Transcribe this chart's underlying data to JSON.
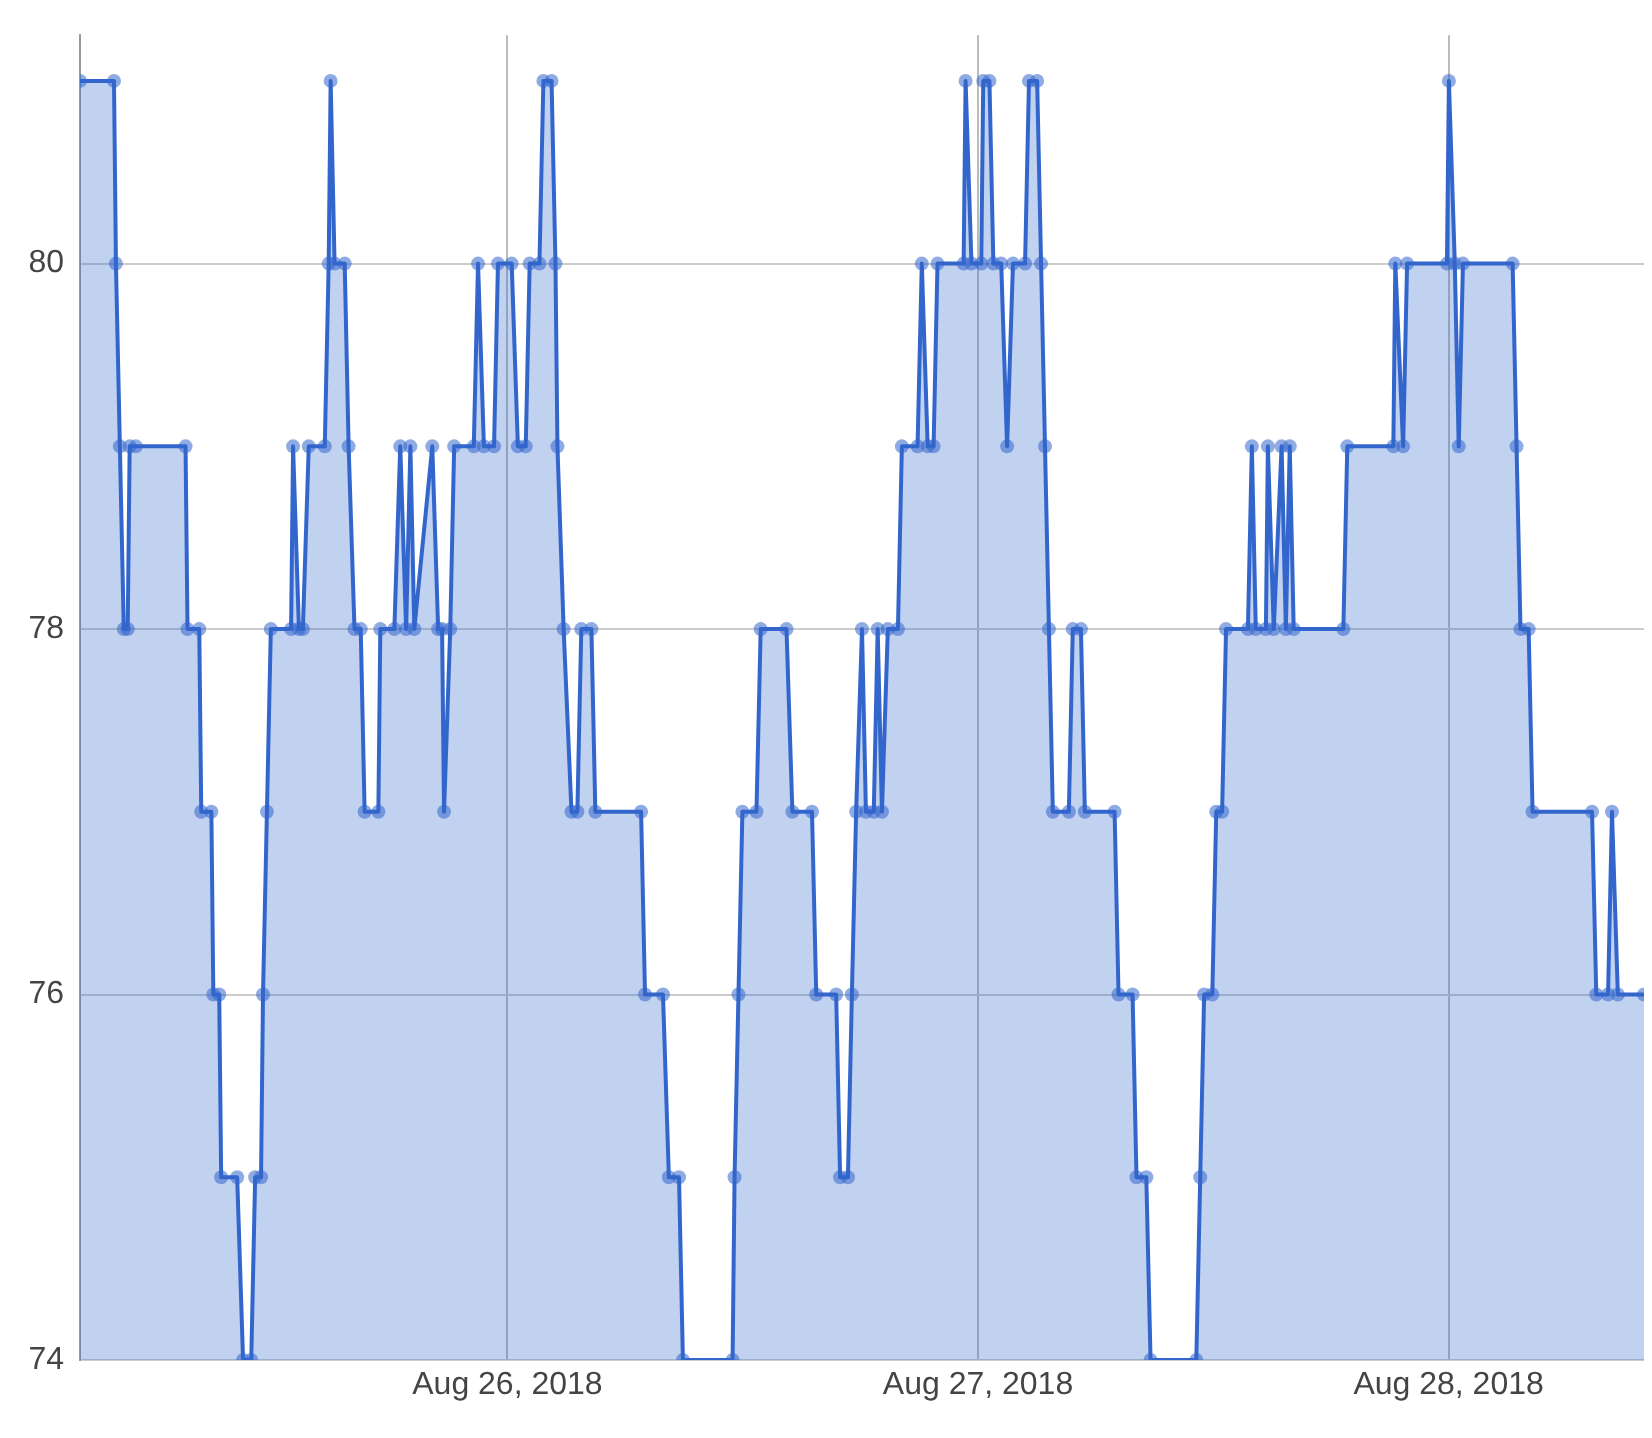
{
  "chart_data": {
    "type": "area",
    "x": [
      "2018-08-25T02:12",
      "2018-08-25T03:56",
      "2018-08-25T04:02",
      "2018-08-25T04:14",
      "2018-08-25T04:26",
      "2018-08-25T04:38",
      "2018-08-25T04:44",
      "2018-08-25T05:03",
      "2018-08-25T07:35",
      "2018-08-25T07:41",
      "2018-08-25T08:17",
      "2018-08-25T08:23",
      "2018-08-25T08:54",
      "2018-08-25T09:00",
      "2018-08-25T09:18",
      "2018-08-25T09:24",
      "2018-08-25T10:13",
      "2018-08-25T10:31",
      "2018-08-25T10:56",
      "2018-08-25T11:08",
      "2018-08-25T11:26",
      "2018-08-25T11:32",
      "2018-08-25T11:44",
      "2018-08-25T11:56",
      "2018-08-25T12:58",
      "2018-08-25T13:04",
      "2018-08-25T13:22",
      "2018-08-25T13:34",
      "2018-08-25T13:52",
      "2018-08-25T14:41",
      "2018-08-25T14:53",
      "2018-08-25T14:59",
      "2018-08-25T15:11",
      "2018-08-25T15:42",
      "2018-08-25T15:54",
      "2018-08-25T16:12",
      "2018-08-25T16:31",
      "2018-08-25T16:43",
      "2018-08-25T17:25",
      "2018-08-25T17:31",
      "2018-08-25T18:14",
      "2018-08-25T18:32",
      "2018-08-25T18:50",
      "2018-08-25T19:03",
      "2018-08-25T19:15",
      "2018-08-25T20:10",
      "2018-08-25T20:28",
      "2018-08-25T20:40",
      "2018-08-25T20:46",
      "2018-08-25T21:05",
      "2018-08-25T21:17",
      "2018-08-25T22:17",
      "2018-08-25T22:30",
      "2018-08-25T22:48",
      "2018-08-25T23:19",
      "2018-08-25T23:31",
      "2018-08-26T00:13",
      "2018-08-26T00:32",
      "2018-08-26T00:56",
      "2018-08-26T01:08",
      "2018-08-26T01:38",
      "2018-08-26T01:50",
      "2018-08-26T02:15",
      "2018-08-26T02:27",
      "2018-08-26T02:33",
      "2018-08-26T02:52",
      "2018-08-26T03:16",
      "2018-08-26T03:34",
      "2018-08-26T03:46",
      "2018-08-26T04:17",
      "2018-08-26T04:29",
      "2018-08-26T06:49",
      "2018-08-26T07:01",
      "2018-08-26T07:56",
      "2018-08-26T08:14",
      "2018-08-26T08:45",
      "2018-08-26T08:57",
      "2018-08-26T11:29",
      "2018-08-26T11:35",
      "2018-08-26T11:47",
      "2018-08-26T11:59",
      "2018-08-26T12:42",
      "2018-08-26T12:55",
      "2018-08-26T14:14",
      "2018-08-26T14:32",
      "2018-08-26T15:32",
      "2018-08-26T15:45",
      "2018-08-26T16:46",
      "2018-08-26T16:58",
      "2018-08-26T17:22",
      "2018-08-26T17:34",
      "2018-08-26T17:47",
      "2018-08-26T18:05",
      "2018-08-26T18:17",
      "2018-08-26T18:41",
      "2018-08-26T18:53",
      "2018-08-26T19:06",
      "2018-08-26T19:24",
      "2018-08-26T19:55",
      "2018-08-26T20:07",
      "2018-08-26T20:55",
      "2018-08-26T21:08",
      "2018-08-26T21:26",
      "2018-08-26T21:44",
      "2018-08-26T21:56",
      "2018-08-26T23:16",
      "2018-08-26T23:22",
      "2018-08-26T23:40",
      "2018-08-27T00:10",
      "2018-08-27T00:16",
      "2018-08-27T00:35",
      "2018-08-27T00:47",
      "2018-08-27T01:11",
      "2018-08-27T01:29",
      "2018-08-27T01:47",
      "2018-08-27T02:24",
      "2018-08-27T02:36",
      "2018-08-27T03:01",
      "2018-08-27T03:13",
      "2018-08-27T03:25",
      "2018-08-27T03:37",
      "2018-08-27T03:49",
      "2018-08-27T04:38",
      "2018-08-27T04:50",
      "2018-08-27T05:15",
      "2018-08-27T05:27",
      "2018-08-27T06:58",
      "2018-08-27T07:10",
      "2018-08-27T07:53",
      "2018-08-27T08:05",
      "2018-08-27T08:35",
      "2018-08-27T08:48",
      "2018-08-27T11:08",
      "2018-08-27T11:20",
      "2018-08-27T11:32",
      "2018-08-27T11:57",
      "2018-08-27T12:09",
      "2018-08-27T12:27",
      "2018-08-27T12:39",
      "2018-08-27T13:46",
      "2018-08-27T13:58",
      "2018-08-27T14:10",
      "2018-08-27T14:41",
      "2018-08-27T14:47",
      "2018-08-27T15:05",
      "2018-08-27T15:29",
      "2018-08-27T15:42",
      "2018-08-27T15:54",
      "2018-08-27T16:06",
      "2018-08-27T18:38",
      "2018-08-27T18:50",
      "2018-08-27T21:11",
      "2018-08-27T21:17",
      "2018-08-27T21:41",
      "2018-08-27T21:53",
      "2018-08-27T23:55",
      "2018-08-28T00:01",
      "2018-08-28T00:19",
      "2018-08-28T00:31",
      "2018-08-28T00:44",
      "2018-08-28T03:16",
      "2018-08-28T03:28",
      "2018-08-28T03:40",
      "2018-08-28T04:05",
      "2018-08-28T04:17",
      "2018-08-28T07:19",
      "2018-08-28T07:32",
      "2018-08-28T08:08",
      "2018-08-28T08:20",
      "2018-08-28T08:38",
      "2018-08-28T09:58"
    ],
    "series": [
      {
        "color": "#3366cc",
        "values": [
          81,
          81,
          80,
          79,
          78,
          78,
          79,
          79,
          79,
          78,
          78,
          77,
          77,
          76,
          76,
          75,
          75,
          74,
          74,
          75,
          75,
          76,
          77,
          78,
          78,
          79,
          78,
          78,
          79,
          79,
          80,
          81,
          80,
          80,
          79,
          78,
          78,
          77,
          77,
          78,
          78,
          79,
          78,
          79,
          78,
          79,
          78,
          78,
          77,
          78,
          79,
          79,
          80,
          79,
          79,
          80,
          80,
          79,
          79,
          80,
          80,
          81,
          81,
          80,
          79,
          78,
          77,
          77,
          78,
          78,
          77,
          77,
          76,
          76,
          75,
          75,
          74,
          74,
          75,
          76,
          77,
          77,
          78,
          78,
          77,
          77,
          76,
          76,
          75,
          75,
          76,
          77,
          78,
          77,
          77,
          78,
          77,
          78,
          78,
          79,
          79,
          80,
          79,
          79,
          80,
          80,
          81,
          80,
          80,
          81,
          81,
          80,
          80,
          79,
          80,
          80,
          81,
          81,
          80,
          79,
          78,
          77,
          77,
          78,
          78,
          77,
          77,
          76,
          76,
          75,
          75,
          74,
          74,
          75,
          76,
          76,
          77,
          77,
          78,
          78,
          79,
          78,
          78,
          79,
          78,
          79,
          78,
          79,
          78,
          78,
          79,
          79,
          80,
          79,
          80,
          80,
          81,
          80,
          79,
          80,
          80,
          79,
          78,
          78,
          77,
          77,
          76,
          76,
          77,
          76,
          76
        ]
      }
    ],
    "xlim": [
      "2018-08-25T02:12",
      "2018-08-28T09:58"
    ],
    "xticks": [
      {
        "value": "2018-08-26",
        "label": "Aug 26, 2018"
      },
      {
        "value": "2018-08-27",
        "label": "Aug 27, 2018"
      },
      {
        "value": "2018-08-28",
        "label": "Aug 28, 2018"
      }
    ],
    "ylim": [
      74,
      81.25
    ],
    "yticks": [
      74,
      76,
      78,
      80
    ],
    "grid": true,
    "marker": "circle"
  }
}
